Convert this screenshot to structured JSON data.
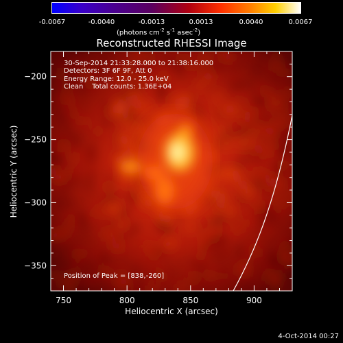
{
  "colorbar": {
    "ticks": [
      "-0.0067",
      "-0.0040",
      "-0.0013",
      "0.0013",
      "0.0040",
      "0.0067"
    ],
    "units_prefix": "(photons cm",
    "units_exp1": "-2",
    "units_mid1": " s",
    "units_exp2": "-1",
    "units_mid2": " asec",
    "units_exp3": "-2",
    "units_suffix": ")"
  },
  "chart_data": {
    "type": "heatmap",
    "title": "Reconstructed RHESSI Image",
    "xlabel": "Heliocentric X (arcsec)",
    "ylabel": "Heliocentric Y (arcsec)",
    "xlim": [
      740,
      930
    ],
    "ylim": [
      -370,
      -180
    ],
    "xticks": [
      750,
      800,
      850,
      900
    ],
    "yticks": [
      -200,
      -250,
      -300,
      -350
    ],
    "peak": [
      838,
      -260
    ],
    "annotations": {
      "time_range": "30-Sep-2014 21:33:28.000 to 21:38:16.000",
      "detectors": "Detectors: 3F 6F 9F, Att 0",
      "energy": "Energy Range: 12.0 - 25.0 keV",
      "clean": "Clean    Total counts: 1.36E+04",
      "peak_position": "Position of Peak = [838,-260]"
    }
  },
  "footer": {
    "date": "4-Oct-2014 00:27"
  }
}
